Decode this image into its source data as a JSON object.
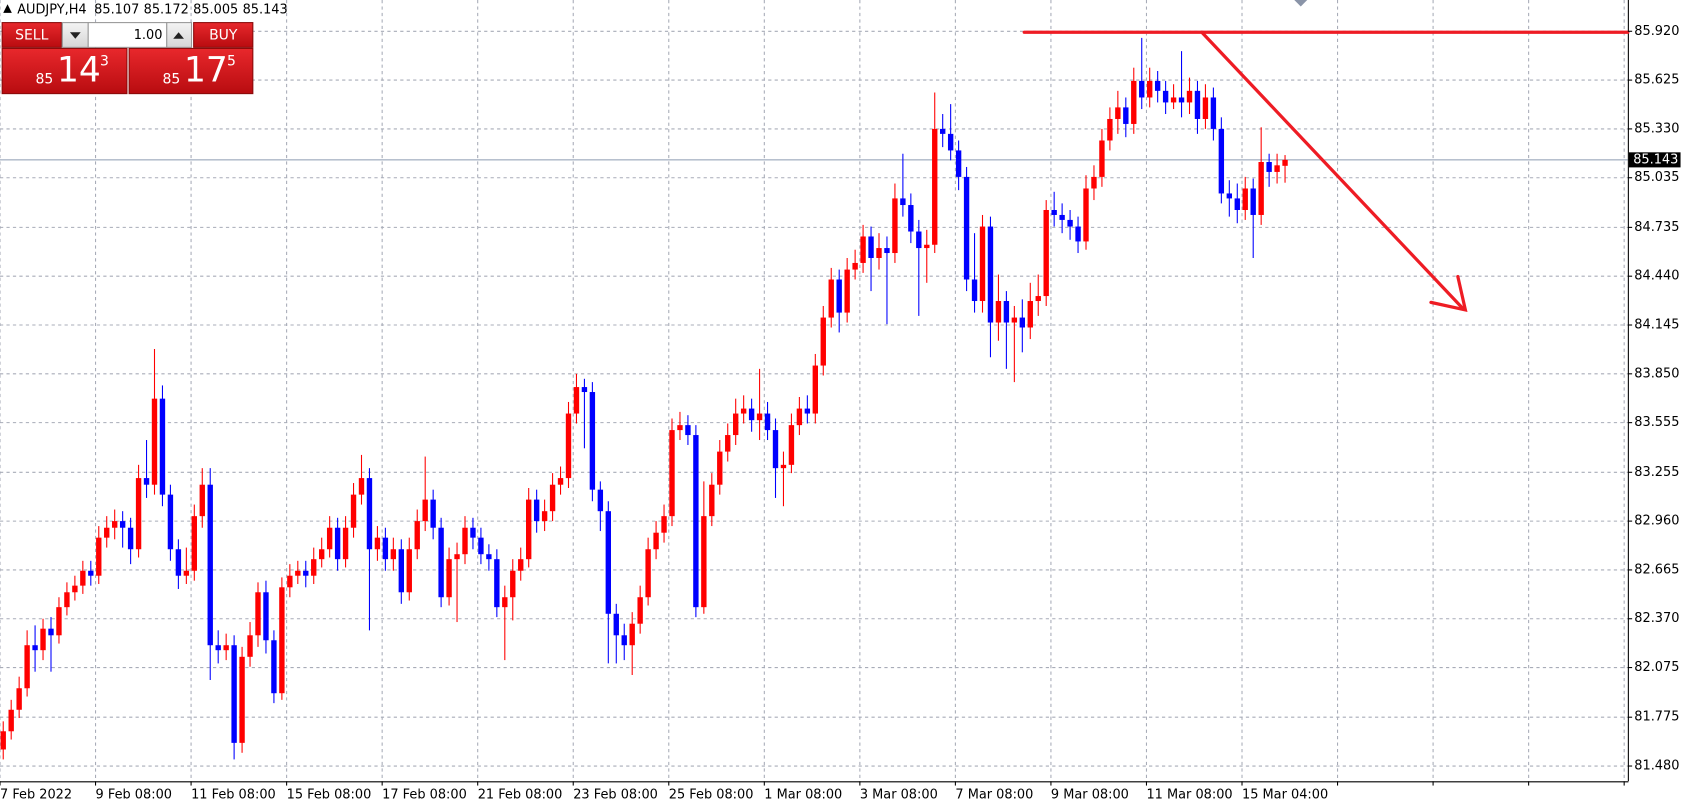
{
  "header": {
    "symbol": "AUDJPY,H4",
    "ohlc": [
      85.107,
      85.172,
      85.005,
      85.143
    ]
  },
  "trade_panel": {
    "sell": "SELL",
    "buy": "BUY",
    "lot": "1.00",
    "sell_price": {
      "big": "85",
      "main": "14",
      "pip": "3"
    },
    "buy_price": {
      "big": "85",
      "main": "17",
      "pip": "5"
    }
  },
  "chart_data": {
    "type": "candlestick",
    "categories": [
      "7 Feb 2022",
      null,
      null,
      null,
      null,
      null,
      null,
      null,
      null,
      null,
      null,
      null,
      "9 Feb 08:00",
      null,
      null,
      null,
      null,
      null,
      null,
      null,
      null,
      null,
      null,
      null,
      "11 Feb 08:00",
      null,
      null,
      null,
      null,
      null,
      null,
      null,
      null,
      null,
      null,
      null,
      "15 Feb 08:00",
      null,
      null,
      null,
      null,
      null,
      null,
      null,
      null,
      null,
      null,
      null,
      "17 Feb 08:00",
      null,
      null,
      null,
      null,
      null,
      null,
      null,
      null,
      null,
      null,
      null,
      "21 Feb 08:00",
      null,
      null,
      null,
      null,
      null,
      null,
      null,
      null,
      null,
      null,
      null,
      "23 Feb 08:00",
      null,
      null,
      null,
      null,
      null,
      null,
      null,
      null,
      null,
      null,
      null,
      "25 Feb 08:00",
      null,
      null,
      null,
      null,
      null,
      null,
      null,
      null,
      null,
      null,
      null,
      "1 Mar 08:00",
      null,
      null,
      null,
      null,
      null,
      null,
      null,
      null,
      null,
      null,
      null,
      "3 Mar 08:00",
      null,
      null,
      null,
      null,
      null,
      null,
      null,
      null,
      null,
      null,
      null,
      "7 Mar 08:00",
      null,
      null,
      null,
      null,
      null,
      null,
      null,
      null,
      null,
      null,
      null,
      "9 Mar 08:00",
      null,
      null,
      null,
      null,
      null,
      null,
      null,
      null,
      null,
      null,
      null,
      "11 Mar 08:00",
      null,
      null,
      null,
      null,
      null,
      null,
      null,
      null,
      null,
      null,
      null,
      "15 Mar 04:00",
      null,
      null,
      null,
      null,
      null
    ],
    "open": [
      81.58,
      81.69,
      81.82,
      81.95,
      82.21,
      82.18,
      82.31,
      82.27,
      82.44,
      82.53,
      82.57,
      82.66,
      82.63,
      82.86,
      82.92,
      82.96,
      82.92,
      82.79,
      83.22,
      83.18,
      83.7,
      83.12,
      82.79,
      82.63,
      82.66,
      82.99,
      83.18,
      82.21,
      82.18,
      82.21,
      81.62,
      82.14,
      82.27,
      82.53,
      82.24,
      81.92,
      82.56,
      82.63,
      82.66,
      82.63,
      82.73,
      82.79,
      82.92,
      82.73,
      82.92,
      83.12,
      83.22,
      82.79,
      82.86,
      82.73,
      82.79,
      82.53,
      82.79,
      82.96,
      83.09,
      82.92,
      82.5,
      82.73,
      82.76,
      82.92,
      82.86,
      82.76,
      82.73,
      82.44,
      82.5,
      82.66,
      82.73,
      83.09,
      82.96,
      83.02,
      83.18,
      83.22,
      83.61,
      83.77,
      83.74,
      83.15,
      83.02,
      82.4,
      82.27,
      82.21,
      82.34,
      82.5,
      82.79,
      82.89,
      82.99,
      83.51,
      83.54,
      83.48,
      82.44,
      82.99,
      83.18,
      83.38,
      83.48,
      83.61,
      83.64,
      83.57,
      83.61,
      83.51,
      83.28,
      83.3,
      83.54,
      83.64,
      83.61,
      83.9,
      84.19,
      84.42,
      84.22,
      84.48,
      84.52,
      84.68,
      84.55,
      84.61,
      84.58,
      84.91,
      84.87,
      84.71,
      84.61,
      84.63,
      85.33,
      85.3,
      85.2,
      85.04,
      84.42,
      84.29,
      84.74,
      84.16,
      84.29,
      84.16,
      84.19,
      84.13,
      84.29,
      84.32,
      84.84,
      84.81,
      84.78,
      84.74,
      84.65,
      84.97,
      85.04,
      85.26,
      85.39,
      85.46,
      85.36,
      85.62,
      85.52,
      85.62,
      85.56,
      85.49,
      85.52,
      85.49,
      85.56,
      85.39,
      85.52,
      85.33,
      84.94,
      84.91,
      84.84,
      84.97,
      84.81,
      85.13,
      85.07,
      85.107
    ],
    "high": [
      81.75,
      81.88,
      82.02,
      82.3,
      82.33,
      82.37,
      82.38,
      82.5,
      82.59,
      82.63,
      82.72,
      82.72,
      82.93,
      82.99,
      83.03,
      83.02,
      82.98,
      83.3,
      83.45,
      84.0,
      83.78,
      83.18,
      82.85,
      82.8,
      83.06,
      83.28,
      83.28,
      82.3,
      82.28,
      82.27,
      82.2,
      82.35,
      82.59,
      82.6,
      82.3,
      82.62,
      82.7,
      82.72,
      82.72,
      82.8,
      82.86,
      82.99,
      82.98,
      82.99,
      83.19,
      83.36,
      83.28,
      82.93,
      82.92,
      82.86,
      82.85,
      82.86,
      83.03,
      83.35,
      83.15,
      82.98,
      82.8,
      82.83,
      82.99,
      82.98,
      82.92,
      82.82,
      82.79,
      82.57,
      82.73,
      82.8,
      83.16,
      83.15,
      83.09,
      83.25,
      83.29,
      83.68,
      83.85,
      83.82,
      83.8,
      83.2,
      83.08,
      82.46,
      82.34,
      82.41,
      82.57,
      82.86,
      82.96,
      83.06,
      83.58,
      83.62,
      83.6,
      83.54,
      83.2,
      83.25,
      83.45,
      83.55,
      83.7,
      83.72,
      83.7,
      83.88,
      83.68,
      83.58,
      83.38,
      83.61,
      83.71,
      83.72,
      83.97,
      84.26,
      84.49,
      84.48,
      84.55,
      84.6,
      84.75,
      84.74,
      84.7,
      84.68,
      85.0,
      85.18,
      84.94,
      84.78,
      84.72,
      85.55,
      85.42,
      85.48,
      85.26,
      85.1,
      84.7,
      84.81,
      84.8,
      84.45,
      84.35,
      84.26,
      84.3,
      84.4,
      84.45,
      84.9,
      84.95,
      84.88,
      84.84,
      84.8,
      85.05,
      85.11,
      85.33,
      85.46,
      85.56,
      85.52,
      85.7,
      85.88,
      85.7,
      85.68,
      85.62,
      85.6,
      85.8,
      85.64,
      85.62,
      85.6,
      85.58,
      85.4,
      85.02,
      85.0,
      85.04,
      85.03,
      85.34,
      85.18,
      85.18,
      85.172
    ],
    "low": [
      81.52,
      81.64,
      81.77,
      81.9,
      82.05,
      82.12,
      82.05,
      82.22,
      82.39,
      82.48,
      82.52,
      82.57,
      82.58,
      82.8,
      82.85,
      82.8,
      82.7,
      82.74,
      83.1,
      83.12,
      83.05,
      82.72,
      82.55,
      82.58,
      82.6,
      82.92,
      82.0,
      82.1,
      82.12,
      81.52,
      81.56,
      82.08,
      82.2,
      82.16,
      81.86,
      81.88,
      82.5,
      82.58,
      82.56,
      82.58,
      82.68,
      82.74,
      82.66,
      82.68,
      82.86,
      83.06,
      82.3,
      82.72,
      82.66,
      82.66,
      82.46,
      82.48,
      82.73,
      82.9,
      82.85,
      82.44,
      82.45,
      82.35,
      82.7,
      82.79,
      82.7,
      82.66,
      82.38,
      82.12,
      82.36,
      82.6,
      82.68,
      82.89,
      82.9,
      82.96,
      83.12,
      83.16,
      83.55,
      83.4,
      83.08,
      82.9,
      82.1,
      82.1,
      82.12,
      82.03,
      82.28,
      82.45,
      82.73,
      82.83,
      82.93,
      83.45,
      83.42,
      82.38,
      82.4,
      82.93,
      83.12,
      83.32,
      83.42,
      83.55,
      83.5,
      83.45,
      83.45,
      83.1,
      83.05,
      83.25,
      83.48,
      83.55,
      83.55,
      83.84,
      84.13,
      84.1,
      84.16,
      84.42,
      84.46,
      84.35,
      84.48,
      84.15,
      84.52,
      84.8,
      84.64,
      84.2,
      84.4,
      84.58,
      85.22,
      85.14,
      84.96,
      84.35,
      84.22,
      84.22,
      83.95,
      84.05,
      83.88,
      83.8,
      83.98,
      84.06,
      84.2,
      84.26,
      84.74,
      84.7,
      84.66,
      84.58,
      84.6,
      84.9,
      84.98,
      85.2,
      85.3,
      85.28,
      85.3,
      85.45,
      85.46,
      85.49,
      85.42,
      85.45,
      85.4,
      85.42,
      85.3,
      85.33,
      85.26,
      84.88,
      84.8,
      84.76,
      84.78,
      84.55,
      84.75,
      84.98,
      85.0,
      85.005
    ],
    "close": [
      81.69,
      81.82,
      81.95,
      82.21,
      82.18,
      82.31,
      82.27,
      82.44,
      82.53,
      82.57,
      82.66,
      82.63,
      82.86,
      82.92,
      82.96,
      82.92,
      82.79,
      83.22,
      83.18,
      83.7,
      83.12,
      82.79,
      82.63,
      82.66,
      82.99,
      83.18,
      82.21,
      82.18,
      82.21,
      81.62,
      82.14,
      82.27,
      82.53,
      82.24,
      81.92,
      82.56,
      82.63,
      82.66,
      82.63,
      82.73,
      82.79,
      82.92,
      82.73,
      82.92,
      83.12,
      83.22,
      82.79,
      82.86,
      82.73,
      82.79,
      82.53,
      82.79,
      82.96,
      83.09,
      82.92,
      82.5,
      82.73,
      82.76,
      82.92,
      82.86,
      82.76,
      82.73,
      82.44,
      82.5,
      82.66,
      82.73,
      83.09,
      82.96,
      83.02,
      83.18,
      83.22,
      83.61,
      83.77,
      83.74,
      83.15,
      83.02,
      82.4,
      82.27,
      82.21,
      82.34,
      82.5,
      82.79,
      82.89,
      82.99,
      83.51,
      83.54,
      83.48,
      82.44,
      82.99,
      83.18,
      83.38,
      83.48,
      83.61,
      83.64,
      83.57,
      83.61,
      83.51,
      83.28,
      83.3,
      83.54,
      83.64,
      83.61,
      83.9,
      84.19,
      84.42,
      84.22,
      84.48,
      84.52,
      84.68,
      84.55,
      84.61,
      84.58,
      84.91,
      84.87,
      84.71,
      84.61,
      84.63,
      85.33,
      85.3,
      85.2,
      85.04,
      84.42,
      84.29,
      84.74,
      84.16,
      84.29,
      84.16,
      84.19,
      84.13,
      84.29,
      84.32,
      84.84,
      84.81,
      84.78,
      84.74,
      84.65,
      84.97,
      85.04,
      85.26,
      85.39,
      85.46,
      85.36,
      85.62,
      85.52,
      85.62,
      85.56,
      85.49,
      85.52,
      85.49,
      85.56,
      85.39,
      85.52,
      85.33,
      84.94,
      84.91,
      84.84,
      84.97,
      84.81,
      85.13,
      85.07,
      85.11,
      85.143
    ],
    "up_color": "#ff0000",
    "down_color": "#0000ff",
    "ylim": [
      81.388,
      86.109
    ],
    "yticks": [
      {
        "value": 85.92,
        "label": "85.920"
      },
      85.625,
      {
        "value": 85.33,
        "label": "85.330"
      },
      85.035,
      84.735,
      {
        "value": 84.44,
        "label": "84.440"
      },
      84.145,
      {
        "value": 83.85,
        "label": "83.850"
      },
      83.555,
      83.255,
      {
        "value": 82.96,
        "label": "82.960"
      },
      82.665,
      {
        "value": 82.37,
        "label": "82.370"
      },
      82.075,
      81.775,
      {
        "value": 81.48,
        "label": "81.480"
      }
    ],
    "grid": true,
    "current_price": 85.143
  }
}
